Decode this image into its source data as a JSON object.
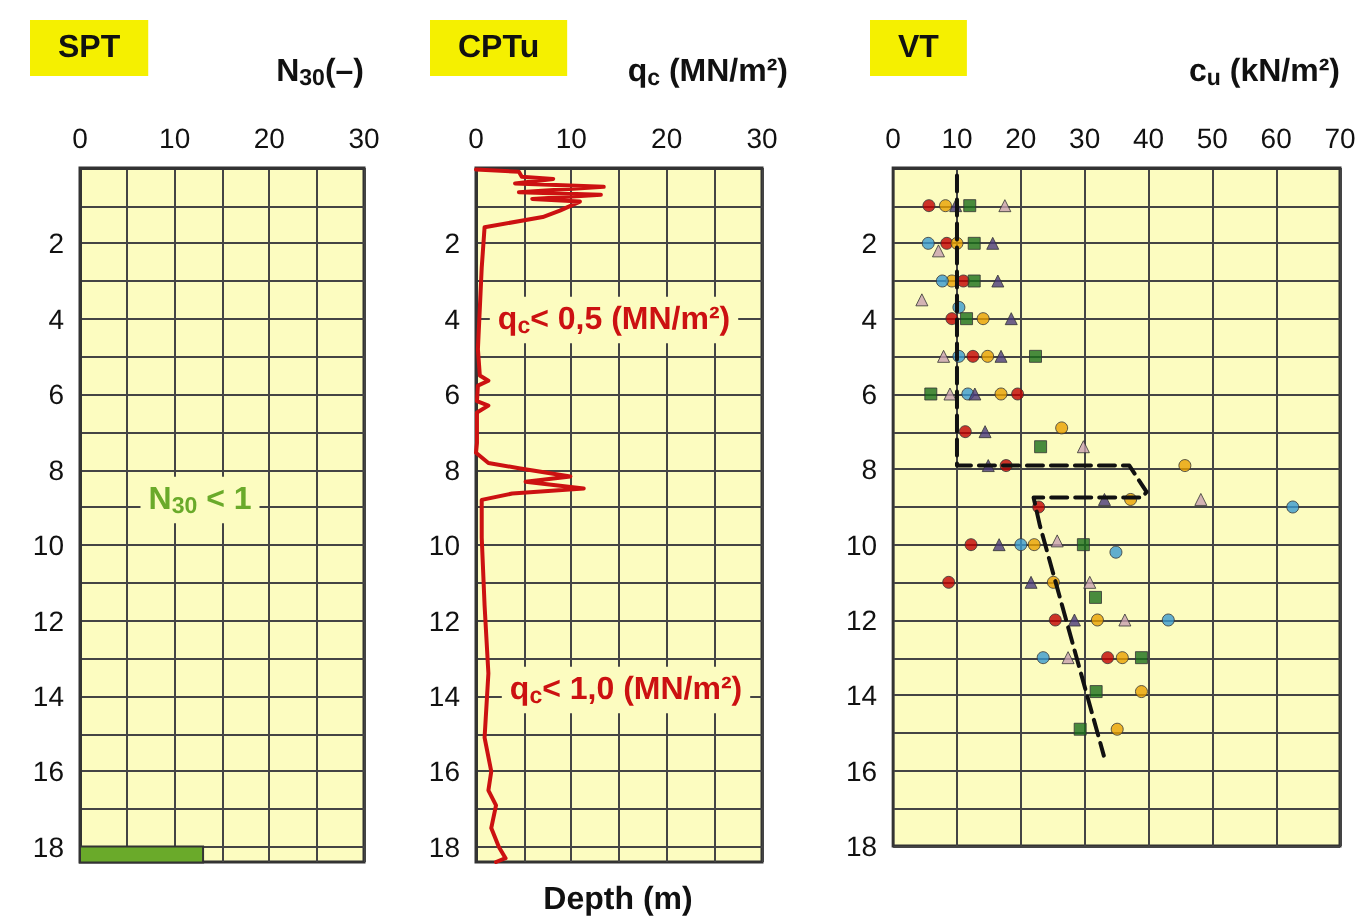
{
  "chart_data": [
    {
      "type": "bar",
      "orientation": "horizontal",
      "title": "SPT",
      "xlabel": "N$_{30}$(–)",
      "xlim": [
        0,
        30
      ],
      "xticks": [
        0,
        {
          "value": 5,
          "label": null
        },
        10,
        {
          "value": 15,
          "label": null
        },
        20,
        {
          "value": 25,
          "label": null
        },
        30
      ],
      "ylim": [
        18.4,
        0
      ],
      "yticks": [
        {
          "value": 1,
          "label": null
        },
        2,
        {
          "value": 3,
          "label": null
        },
        4,
        {
          "value": 5,
          "label": null
        },
        6,
        {
          "value": 7,
          "label": null
        },
        8,
        {
          "value": 9,
          "label": null
        },
        10,
        {
          "value": 11,
          "label": null
        },
        12,
        {
          "value": 13,
          "label": null
        },
        14,
        {
          "value": 15,
          "label": null
        },
        16,
        {
          "value": 17,
          "label": null
        },
        18
      ],
      "grid": true,
      "annotations": [
        "N$_{30}$ < 1"
      ],
      "series": [
        {
          "color": "#6aaa2a",
          "x": [
            18.2
          ],
          "values": [
            13
          ]
        }
      ]
    },
    {
      "type": "line",
      "title": "CPTu",
      "xlabel": "q$_{c}$ (MN/m²)",
      "xlim": [
        0,
        30
      ],
      "xticks": [
        0,
        {
          "value": 5,
          "label": null
        },
        10,
        {
          "value": 15,
          "label": null
        },
        20,
        {
          "value": 25,
          "label": null
        },
        30
      ],
      "ylim": [
        18.4,
        0
      ],
      "yticks": [
        {
          "value": 1,
          "label": null
        },
        2,
        {
          "value": 3,
          "label": null
        },
        4,
        {
          "value": 5,
          "label": null
        },
        6,
        {
          "value": 7,
          "label": null
        },
        8,
        {
          "value": 9,
          "label": null
        },
        10,
        {
          "value": 11,
          "label": null
        },
        12,
        {
          "value": 13,
          "label": null
        },
        14,
        {
          "value": 15,
          "label": null
        },
        16,
        {
          "value": 17,
          "label": null
        },
        18
      ],
      "grid": true,
      "marker": "none",
      "line_style": "solid",
      "annotations": [
        "q$_{c}$< 0,5 (MN/m²)",
        "q$_{c}$< 1,0 (MN/m²)",
        "Depth (m)"
      ],
      "series": [
        {
          "color": "#cc1111",
          "x": [
            0,
            4.5,
            4.8,
            8.1,
            4.1,
            13.4,
            4.5,
            13.1,
            5.9,
            10.9,
            8.8,
            7,
            0.9,
            0.6,
            0.2,
            0.4,
            1.3,
            0.2,
            0.1,
            1.3,
            0.1,
            0.1,
            0,
            1.3,
            4.5,
            9.9,
            5.2,
            11.3,
            3.8,
            0.6,
            0.6,
            0.9,
            1.3,
            0.9,
            1.6,
            1.3,
            2.1,
            1.6,
            2.4,
            3.1,
            2.1
          ],
          "values": [
            0.04,
            0.1,
            0.23,
            0.29,
            0.41,
            0.5,
            0.64,
            0.71,
            0.82,
            0.89,
            1.13,
            1.3,
            1.57,
            2.64,
            4.8,
            5.5,
            5.64,
            5.77,
            6.18,
            6.3,
            6.48,
            7.29,
            7.55,
            7.82,
            7.96,
            8.18,
            8.32,
            8.5,
            8.63,
            8.8,
            9.8,
            11.6,
            13.4,
            15.1,
            16.0,
            16.5,
            16.9,
            17.5,
            18.0,
            18.3,
            18.4
          ]
        }
      ]
    },
    {
      "type": "scatter",
      "title": "VT",
      "xlabel": "c$_{u}$ (kN/m²)",
      "xlim": [
        0,
        70
      ],
      "xticks": [
        0,
        10,
        20,
        30,
        40,
        50,
        60,
        70
      ],
      "ylim": [
        18,
        0
      ],
      "yticks": [
        {
          "value": 1,
          "label": null
        },
        2,
        {
          "value": 3,
          "label": null
        },
        4,
        {
          "value": 5,
          "label": null
        },
        6,
        {
          "value": 7,
          "label": null
        },
        8,
        {
          "value": 9,
          "label": null
        },
        10,
        {
          "value": 11,
          "label": null
        },
        12,
        {
          "value": 13,
          "label": null
        },
        14,
        {
          "value": 15,
          "label": null
        },
        16,
        {
          "value": 17,
          "label": null
        },
        18
      ],
      "grid": true,
      "series": [
        {
          "color": "#c00000",
          "marker": "circle",
          "x": [
            5.6,
            8.4,
            11.0,
            9.2,
            12.5,
            19.5,
            11.3,
            17.7,
            22.8,
            12.2,
            8.7,
            25.4,
            33.6
          ],
          "values": [
            1,
            2,
            3,
            4,
            5,
            6,
            7,
            7.9,
            9,
            10,
            11,
            12,
            13
          ]
        },
        {
          "color": "#e8a000",
          "marker": "circle",
          "x": [
            8.2,
            10.0,
            9.2,
            14.1,
            14.8,
            16.9,
            26.4,
            45.7,
            37.2,
            22.1,
            25.1,
            32.0,
            35.9,
            38.9,
            35.1
          ],
          "values": [
            1,
            2,
            3,
            4,
            5,
            6,
            6.9,
            7.9,
            8.8,
            10,
            11,
            12,
            13,
            13.9,
            14.9
          ]
        },
        {
          "color": "#3a9ad0",
          "marker": "circle",
          "x": [
            5.5,
            7.7,
            10.3,
            10.3,
            11.7,
            62.6,
            20.0,
            34.9,
            43.1,
            23.5
          ],
          "values": [
            2,
            3,
            3.7,
            5,
            6,
            9,
            10,
            10.2,
            12,
            13
          ]
        },
        {
          "color": "#1a6e1a",
          "marker": "square",
          "x": [
            12.0,
            12.7,
            12.7,
            11.5,
            22.3,
            5.9,
            23.1,
            29.8,
            31.7,
            38.9,
            31.8,
            29.3
          ],
          "values": [
            1,
            2,
            3,
            4,
            5,
            6,
            7.4,
            10,
            11.4,
            13,
            13.9,
            14.9
          ]
        },
        {
          "color": "#4a3a7a",
          "marker": "triangle",
          "x": [
            9.8,
            15.6,
            16.4,
            18.5,
            16.9,
            12.8,
            14.4,
            14.9,
            33.1,
            16.6,
            21.6,
            28.4
          ],
          "values": [
            1,
            2,
            3,
            4,
            5,
            6,
            7,
            7.9,
            8.8,
            10,
            11,
            12
          ]
        },
        {
          "color": "#c8a0b0",
          "marker": "triangle",
          "x": [
            17.5,
            7.1,
            4.5,
            7.9,
            8.9,
            29.8,
            48.2,
            25.7,
            30.8,
            36.3,
            27.4
          ],
          "values": [
            1,
            2.2,
            3.5,
            5,
            6,
            7.4,
            8.8,
            9.9,
            11,
            12,
            13
          ]
        },
        {
          "type": "line",
          "color": "#111111",
          "marker": "none",
          "line_style": "dashed",
          "x": [
            10,
            10,
            37,
            39.7,
            39,
            22,
            23,
            33
          ],
          "values": [
            0.2,
            7.9,
            7.9,
            8.6,
            8.75,
            8.75,
            9.5,
            15.6
          ]
        }
      ]
    }
  ]
}
